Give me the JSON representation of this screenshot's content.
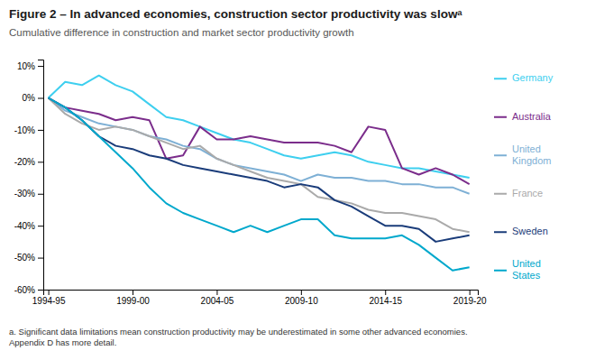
{
  "chart_data": {
    "type": "line",
    "title": "Figure 2 – In advanced economies, construction sector productivity was slowᵃ",
    "subtitle": "Cumulative difference in construction and market sector productivity growth",
    "footnote": "a.  Significant data limitations mean construction productivity may be underestimated in some other advanced economies.\nAppendix D has more detail.",
    "x": [
      0,
      1,
      2,
      3,
      4,
      5,
      6,
      7,
      8,
      9,
      10,
      11,
      12,
      13,
      14,
      15,
      16,
      17,
      18,
      19,
      20,
      21,
      22,
      23,
      24,
      25
    ],
    "xlim": [
      -0.3,
      25.5
    ],
    "xticks": [
      {
        "value": 0,
        "label": "1994-95"
      },
      {
        "value": 5,
        "label": "1999-00"
      },
      {
        "value": 10,
        "label": "2004-05"
      },
      {
        "value": 15,
        "label": "2009-10"
      },
      {
        "value": 20,
        "label": "2014-15"
      },
      {
        "value": 25,
        "label": "2019-20"
      }
    ],
    "ylim": [
      -60,
      12
    ],
    "yticks": [
      {
        "value": 10,
        "label": "10%"
      },
      {
        "value": 0,
        "label": "0%"
      },
      {
        "value": -10,
        "label": "-10%"
      },
      {
        "value": -20,
        "label": "-20%"
      },
      {
        "value": -30,
        "label": "-30%"
      },
      {
        "value": -40,
        "label": "-40%"
      },
      {
        "value": -50,
        "label": "-50%"
      },
      {
        "value": -60,
        "label": "-60%"
      }
    ],
    "grid": false,
    "series": [
      {
        "name": "Germany",
        "color": "#3ECFEF",
        "values": [
          0,
          5,
          4,
          7,
          4,
          2,
          -2,
          -6,
          -7,
          -9,
          -11,
          -13,
          -14,
          -16,
          -18,
          -19,
          -18,
          -17,
          -18,
          -20,
          -21,
          -22,
          -22,
          -23,
          -24,
          -25
        ]
      },
      {
        "name": "Australia",
        "color": "#7B2D8B",
        "values": [
          0,
          -3,
          -4,
          -5,
          -7,
          -6,
          -7,
          -19,
          -18,
          -9,
          -13,
          -13,
          -12,
          -13,
          -14,
          -14,
          -14,
          -15,
          -17,
          -9,
          -10,
          -22,
          -24,
          -22,
          -24,
          -27
        ]
      },
      {
        "name": "United\nKingdom",
        "color": "#7EB0D5",
        "values": [
          0,
          -4,
          -6,
          -8,
          -9,
          -10,
          -12,
          -13,
          -15,
          -16,
          -19,
          -21,
          -22,
          -23,
          -24,
          -26,
          -24,
          -25,
          -25,
          -26,
          -26,
          -27,
          -27,
          -28,
          -28,
          -30
        ]
      },
      {
        "name": "France",
        "color": "#AAAAAA",
        "values": [
          0,
          -5,
          -8,
          -10,
          -9,
          -10,
          -12,
          -14,
          -16,
          -15,
          -19,
          -21,
          -23,
          -25,
          -26,
          -27,
          -31,
          -32,
          -33,
          -35,
          -36,
          -36,
          -37,
          -38,
          -41,
          -42
        ]
      },
      {
        "name": "Sweden",
        "color": "#1A3C7A",
        "values": [
          0,
          -3,
          -7,
          -12,
          -15,
          -16,
          -18,
          -19,
          -21,
          -22,
          -23,
          -24,
          -25,
          -26,
          -28,
          -27,
          -28,
          -32,
          -34,
          -37,
          -40,
          -40,
          -41,
          -45,
          -44,
          -43
        ]
      },
      {
        "name": "United\nStates",
        "color": "#00A8CC",
        "values": [
          0,
          -3,
          -7,
          -12,
          -17,
          -22,
          -28,
          -33,
          -36,
          -38,
          -40,
          -42,
          -40,
          -42,
          -40,
          -38,
          -38,
          -43,
          -44,
          -44,
          -44,
          -43,
          -46,
          -50,
          -54,
          -53
        ]
      }
    ]
  }
}
